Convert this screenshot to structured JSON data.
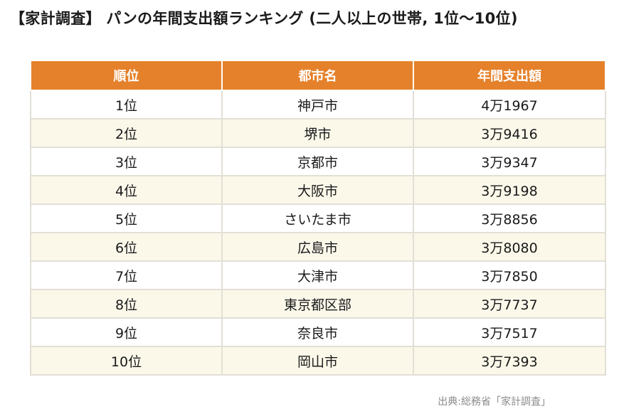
{
  "title": "【家計調査】 パンの年間支出額ランキング (二人以上の世帯, 1位〜10位)",
  "table": {
    "headers": [
      "順位",
      "都市名",
      "年間支出額"
    ],
    "rows": [
      {
        "rank": "1位",
        "city": "神戸市",
        "amount": "4万1967"
      },
      {
        "rank": "2位",
        "city": "堺市",
        "amount": "3万9416"
      },
      {
        "rank": "3位",
        "city": "京都市",
        "amount": "3万9347"
      },
      {
        "rank": "4位",
        "city": "大阪市",
        "amount": "3万9198"
      },
      {
        "rank": "5位",
        "city": "さいたま市",
        "amount": "3万8856"
      },
      {
        "rank": "6位",
        "city": "広島市",
        "amount": "3万8080"
      },
      {
        "rank": "7位",
        "city": "大津市",
        "amount": "3万7850"
      },
      {
        "rank": "8位",
        "city": "東京都区部",
        "amount": "3万7737"
      },
      {
        "rank": "9位",
        "city": "奈良市",
        "amount": "3万7517"
      },
      {
        "rank": "10位",
        "city": "岡山市",
        "amount": "3万7393"
      }
    ]
  },
  "source": "出典:総務省「家計調査」",
  "colors": {
    "header_bg": "#e5812a",
    "header_text": "#ffffff",
    "row_alt": "#fbf8ea",
    "border": "#e2dfd6"
  }
}
